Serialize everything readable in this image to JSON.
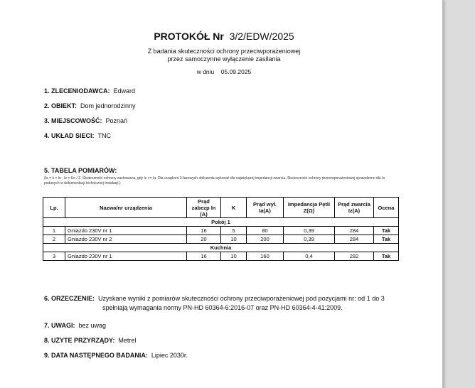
{
  "title": {
    "prefix": "PROTOKÓŁ Nr",
    "number": "3/2/EDW/2025"
  },
  "subtitle": [
    "Z badania skuteczności ochrony przeciwporażeniowej",
    "przez samoczynne wyłączenie zasilania"
  ],
  "date": {
    "label": "w dniu",
    "value": "05.09.2025"
  },
  "sections": [
    {
      "label": "1. ZLECENIODAWCA:",
      "value": "Edward"
    },
    {
      "label": "2. OBIEKT:",
      "value": "Dom jednorodzinny"
    },
    {
      "label": "3. MIEJSCOWOŚĆ:",
      "value": "Poznań"
    },
    {
      "label": "4. UKŁAD SIECI:",
      "value": "TNC"
    }
  ],
  "table_section": {
    "label": "5. TABELA POMIARÓW:",
    "note": "(Ia = k × In ; Iz = Uo / Z. Skuteczność ochrony zachowana, gdy Iz >= Ia. Dla urządzeń 3-fazowych obliczenia wykonać dla największej impedancji zwarcia. Skuteczność ochrony przeciwporażeniowej sprawdzono dla In podanych w dokumentacji technicznej instalacji.)"
  },
  "table": {
    "headers": [
      "Lp.",
      "Nazwa/nr urządzenia",
      "Prąd zabezp In (A)",
      "K",
      "Prąd wył. Ia(A)",
      "Impedancja Pętli Z(Ω)",
      "Prąd zwarcia Iz(A)",
      "Ocena"
    ],
    "groups": [
      {
        "name": "Pokój 1",
        "rows": [
          [
            "1",
            "Gniazdo 230V nr 1",
            "16",
            "5",
            "80",
            "0,39",
            "284",
            "Tak"
          ],
          [
            "2",
            "Gniazdo 230V nr 2",
            "20",
            "10",
            "200",
            "0,39",
            "284",
            "Tak"
          ]
        ]
      },
      {
        "name": "Kuchnia",
        "rows": [
          [
            "3",
            "Gniazdo 230V nr 1",
            "16",
            "10",
            "160",
            "0,4",
            "282",
            "Tak"
          ]
        ]
      }
    ]
  },
  "conclusion": {
    "label": "6. ORZECZENIE:",
    "line1": "Uzyskane wyniki z pomiarów skuteczności ochrony przeciwporażeniowej pod pozycjami nr: od 1 do 3",
    "line2": "spełniają wymagania normy PN-HD 60364-6:2016-07 oraz PN-HD 60364-4-41:2009."
  },
  "footer_sections": [
    {
      "label": "7. UWAGI:",
      "value": "bez uwag"
    },
    {
      "label": "8. UŻYTE PRZYRZĄDY:",
      "value": "Metrel"
    },
    {
      "label": "9. DATA NASTĘPNEGO BADANIA:",
      "value": "Lipiec 2030r."
    }
  ]
}
